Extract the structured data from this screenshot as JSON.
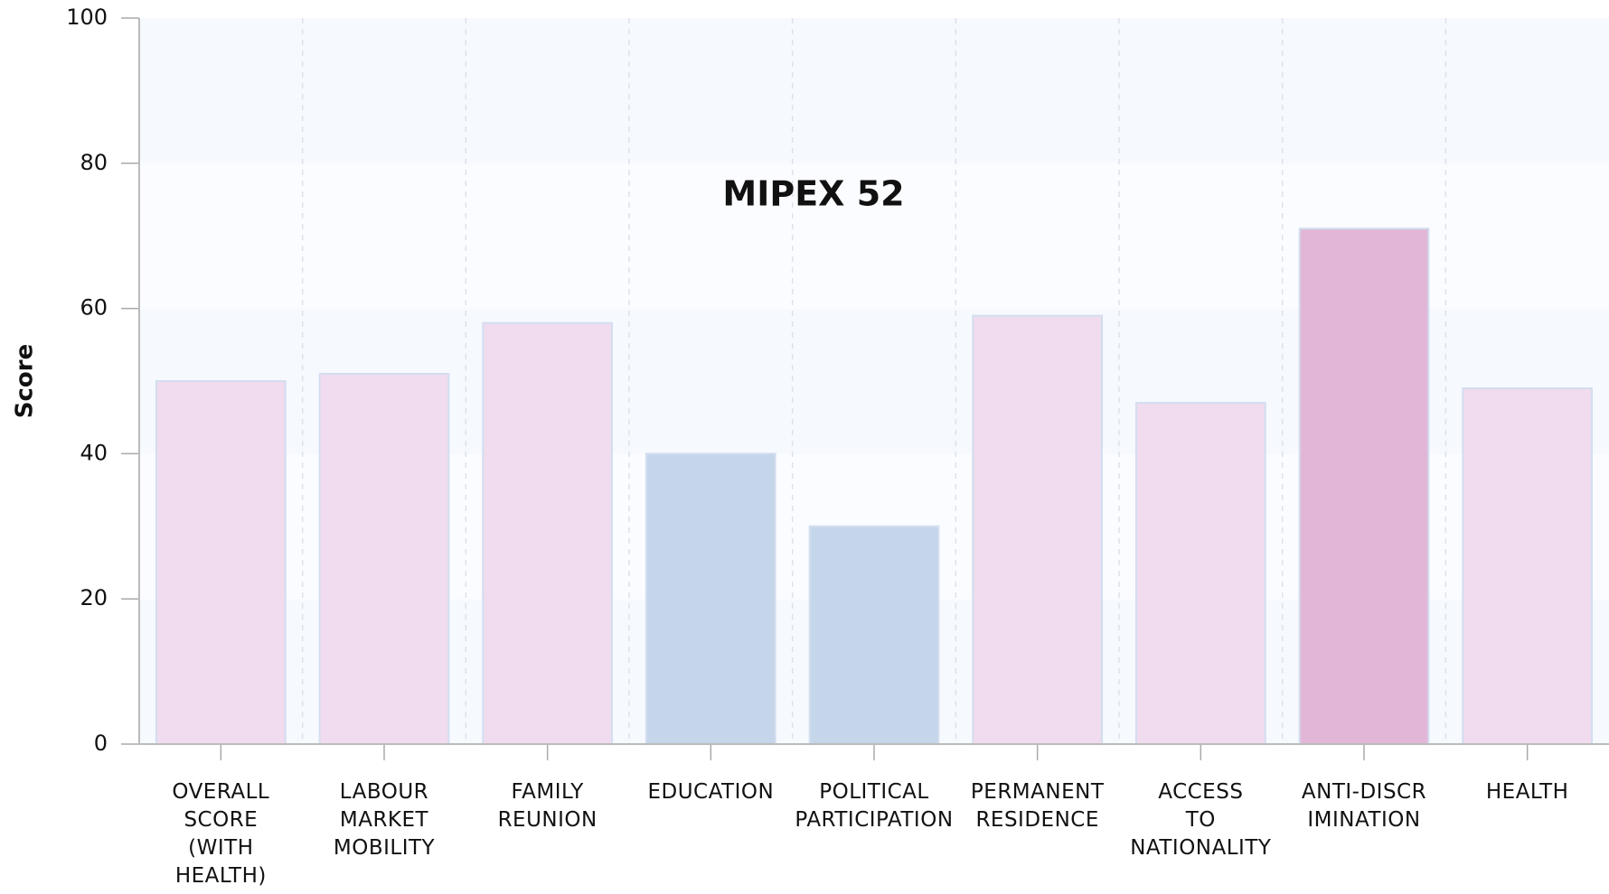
{
  "chart_data": {
    "type": "bar",
    "title": "MIPEX 52",
    "ylabel": "Score",
    "categories": [
      "OVERALL\nSCORE\n(WITH\nHEALTH)",
      "LABOUR\nMARKET\nMOBILITY",
      "FAMILY\nREUNION",
      "EDUCATION",
      "POLITICAL\nPARTICIPATION",
      "PERMANENT\nRESIDENCE",
      "ACCESS\nTO\nNATIONALITY",
      "ANTI-DISCR\nIMINATION",
      "HEALTH"
    ],
    "values": [
      50,
      51,
      58,
      40,
      30,
      59,
      47,
      71,
      49
    ],
    "colors": [
      "#f0dcee",
      "#f0dcee",
      "#f0dcee",
      "#c5d5ea",
      "#c5d5ea",
      "#f0dcee",
      "#f0dcee",
      "#e2b6d6",
      "#f0dcee"
    ],
    "ylim": [
      0,
      100
    ],
    "yticks": [
      0,
      20,
      40,
      60,
      80,
      100
    ],
    "grid": true
  }
}
